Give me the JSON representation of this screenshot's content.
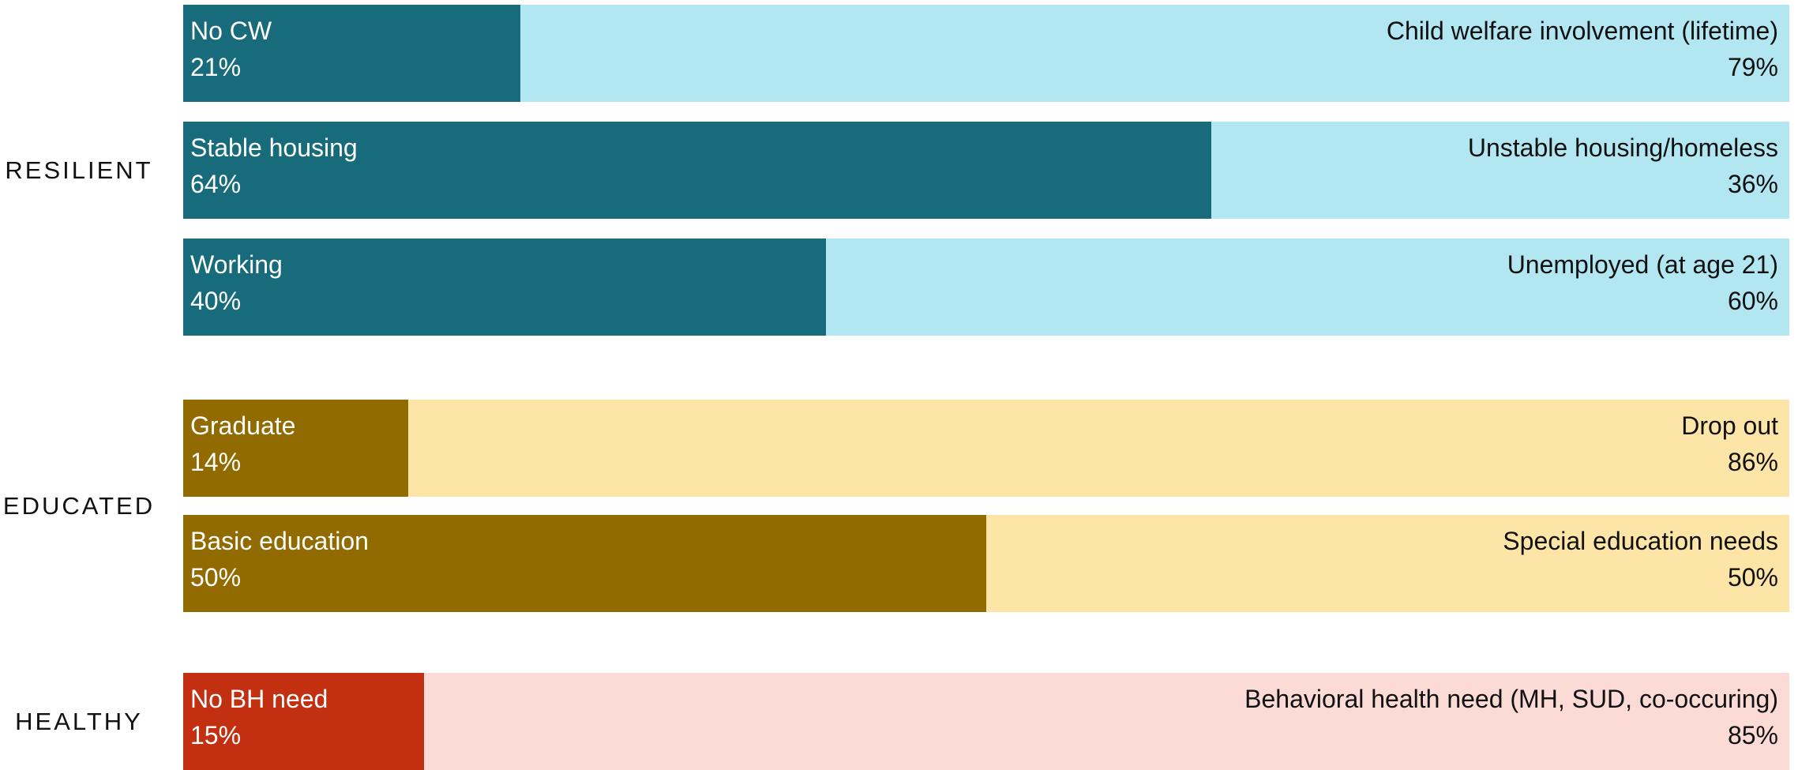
{
  "chart_data": {
    "type": "bar",
    "orientation": "horizontal",
    "stacked": true,
    "unit": "%",
    "groups": [
      {
        "name": "RESILIENT",
        "colors": {
          "left": "#186b7b",
          "right": "#b2e6f1"
        },
        "bars": [
          {
            "left_label": "No CW",
            "left_value": 21,
            "left_text": "21%",
            "right_label": "Child welfare involvement (lifetime)",
            "right_value": 79,
            "right_text": "79%"
          },
          {
            "left_label": "Stable housing",
            "left_value": 64,
            "left_text": "64%",
            "right_label": "Unstable housing/homeless",
            "right_value": 36,
            "right_text": "36%"
          },
          {
            "left_label": "Working",
            "left_value": 40,
            "left_text": "40%",
            "right_label": "Unemployed (at age 21)",
            "right_value": 60,
            "right_text": "60%"
          }
        ]
      },
      {
        "name": "EDUCATED",
        "colors": {
          "left": "#916a00",
          "right": "#fde5a8"
        },
        "bars": [
          {
            "left_label": "Graduate",
            "left_value": 14,
            "left_text": "14%",
            "right_label": "Drop out",
            "right_value": 86,
            "right_text": "86%"
          },
          {
            "left_label": "Basic education",
            "left_value": 50,
            "left_text": "50%",
            "right_label": "Special education needs",
            "right_value": 50,
            "right_text": "50%"
          }
        ]
      },
      {
        "name": "HEALTHY",
        "colors": {
          "left": "#c32f11",
          "right": "#fcdbd6"
        },
        "bars": [
          {
            "left_label": "No BH need",
            "left_value": 15,
            "left_text": "15%",
            "right_label": "Behavioral health need (MH, SUD, co-occuring)",
            "right_value": 85,
            "right_text": "85%"
          }
        ]
      }
    ]
  }
}
